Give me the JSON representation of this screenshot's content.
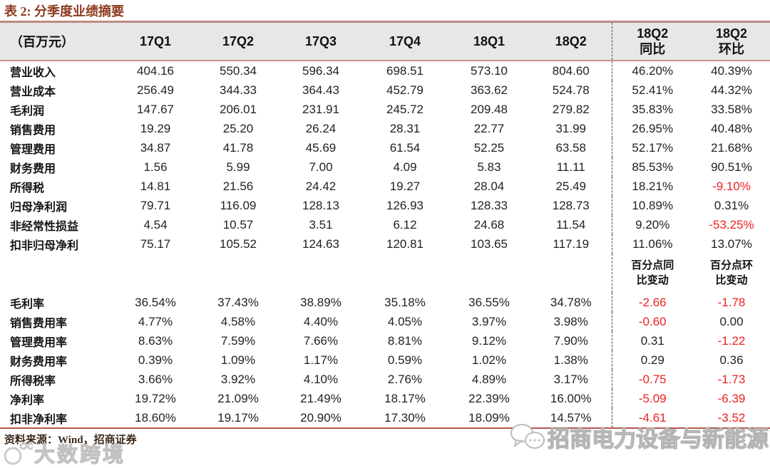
{
  "title": "表 2: 分季度业绩摘要",
  "table": {
    "unit_header": "（百万元）",
    "quarter_columns": [
      "17Q1",
      "17Q2",
      "17Q3",
      "17Q4",
      "18Q1",
      "18Q2"
    ],
    "change_columns": [
      {
        "line1": "18Q2",
        "line2": "同比"
      },
      {
        "line1": "18Q2",
        "line2": "环比"
      }
    ],
    "pp_headers": [
      {
        "line1": "百分点同",
        "line2": "比变动"
      },
      {
        "line1": "百分点环",
        "line2": "比变动"
      }
    ],
    "money_rows": [
      {
        "label": "营业收入",
        "values": [
          "404.16",
          "550.34",
          "596.34",
          "698.51",
          "573.10",
          "804.60"
        ],
        "yoy": "46.20%",
        "qoq": "40.39%"
      },
      {
        "label": "营业成本",
        "values": [
          "256.49",
          "344.33",
          "364.43",
          "452.79",
          "363.62",
          "524.78"
        ],
        "yoy": "52.41%",
        "qoq": "44.32%"
      },
      {
        "label": "毛利润",
        "values": [
          "147.67",
          "206.01",
          "231.91",
          "245.72",
          "209.48",
          "279.82"
        ],
        "yoy": "35.83%",
        "qoq": "33.58%"
      },
      {
        "label": "销售费用",
        "values": [
          "19.29",
          "25.20",
          "26.24",
          "28.31",
          "22.77",
          "31.99"
        ],
        "yoy": "26.95%",
        "qoq": "40.48%"
      },
      {
        "label": "管理费用",
        "values": [
          "34.87",
          "41.78",
          "45.69",
          "61.54",
          "52.25",
          "63.58"
        ],
        "yoy": "52.17%",
        "qoq": "21.68%"
      },
      {
        "label": "财务费用",
        "values": [
          "1.56",
          "5.99",
          "7.00",
          "4.09",
          "5.83",
          "11.11"
        ],
        "yoy": "85.53%",
        "qoq": "90.51%"
      },
      {
        "label": "所得税",
        "values": [
          "14.81",
          "21.56",
          "24.42",
          "19.27",
          "28.04",
          "25.49"
        ],
        "yoy": "18.21%",
        "qoq": "-9.10%"
      },
      {
        "label": "归母净利润",
        "values": [
          "79.71",
          "116.09",
          "128.13",
          "126.93",
          "128.33",
          "128.73"
        ],
        "yoy": "10.89%",
        "qoq": "0.31%"
      },
      {
        "label": "非经常性损益",
        "values": [
          "4.54",
          "10.57",
          "3.51",
          "6.12",
          "24.68",
          "11.54"
        ],
        "yoy": "9.20%",
        "qoq": "-53.25%"
      },
      {
        "label": "扣非归母净利",
        "values": [
          "75.17",
          "105.52",
          "124.63",
          "120.81",
          "103.65",
          "117.19"
        ],
        "yoy": "11.06%",
        "qoq": "13.07%"
      }
    ],
    "ratio_rows": [
      {
        "label": "毛利率",
        "values": [
          "36.54%",
          "37.43%",
          "38.89%",
          "35.18%",
          "36.55%",
          "34.78%"
        ],
        "yoy": "-2.66",
        "qoq": "-1.78"
      },
      {
        "label": "销售费用率",
        "values": [
          "4.77%",
          "4.58%",
          "4.40%",
          "4.05%",
          "3.97%",
          "3.98%"
        ],
        "yoy": "-0.60",
        "qoq": "0.00"
      },
      {
        "label": "管理费用率",
        "values": [
          "8.63%",
          "7.59%",
          "7.66%",
          "8.81%",
          "9.12%",
          "7.90%"
        ],
        "yoy": "0.31",
        "qoq": "-1.22"
      },
      {
        "label": "财务费用率",
        "values": [
          "0.39%",
          "1.09%",
          "1.17%",
          "0.59%",
          "1.02%",
          "1.38%"
        ],
        "yoy": "0.29",
        "qoq": "0.36"
      },
      {
        "label": "所得税率",
        "values": [
          "3.66%",
          "3.92%",
          "4.10%",
          "2.76%",
          "4.89%",
          "3.17%"
        ],
        "yoy": "-0.75",
        "qoq": "-1.73"
      },
      {
        "label": "净利率",
        "values": [
          "19.72%",
          "21.09%",
          "21.49%",
          "18.17%",
          "22.39%",
          "16.00%"
        ],
        "yoy": "-5.09",
        "qoq": "-6.39"
      },
      {
        "label": "扣非净利率",
        "values": [
          "18.60%",
          "19.17%",
          "20.90%",
          "17.30%",
          "18.09%",
          "14.57%"
        ],
        "yoy": "-4.61",
        "qoq": "-3.52"
      }
    ]
  },
  "footer": {
    "source": "资料来源：Wind，招商证券"
  },
  "watermarks": {
    "bottom_left": "大数跨境",
    "bottom_right": "招商电力设备与新能源"
  },
  "colors": {
    "title": "#8e3a1f",
    "top_line": "#bd8a82",
    "header_underline": "#c9938b",
    "bottom_line": "#b1584a",
    "header_bg": "#e7e7e7",
    "negative_red": "#ee2020",
    "text": "#222222"
  }
}
